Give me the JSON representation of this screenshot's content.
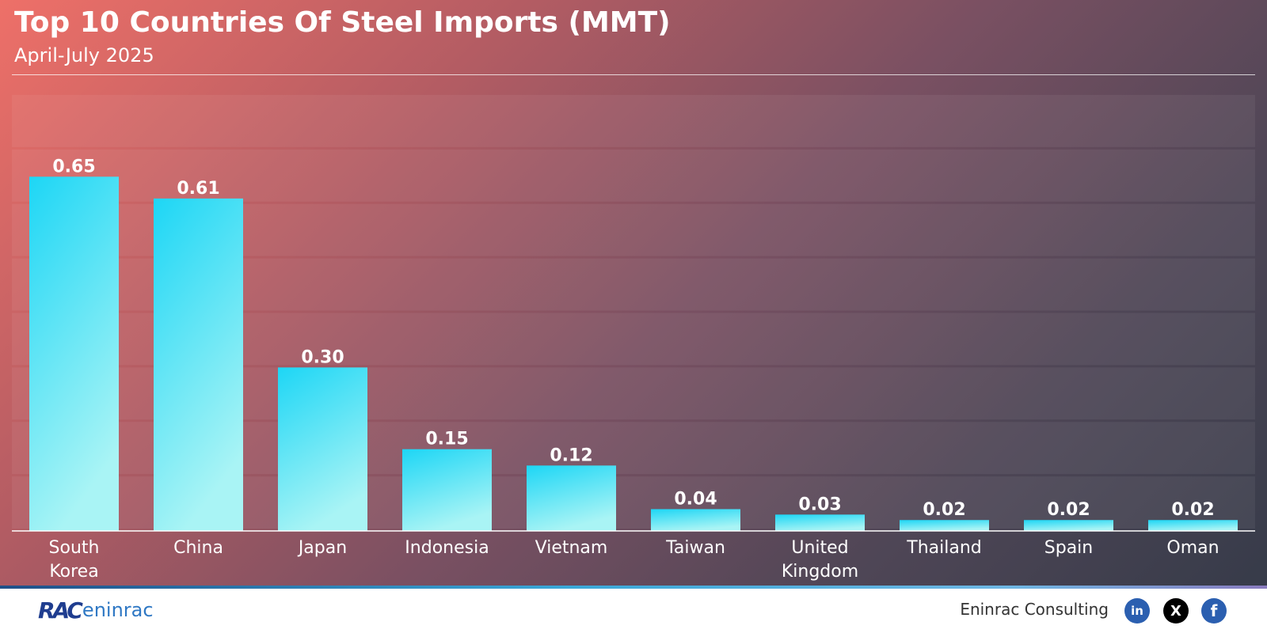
{
  "header": {
    "title": "Top 10 Countries Of Steel Imports (MMT)",
    "subtitle": "April-July 2025"
  },
  "chart_data": {
    "type": "bar",
    "title": "Top 10 Countries Of Steel Imports (MMT)",
    "subtitle": "April-July 2025",
    "categories": [
      [
        "South",
        "Korea"
      ],
      [
        "China"
      ],
      [
        "Japan"
      ],
      [
        "Indonesia"
      ],
      [
        "Vietnam"
      ],
      [
        "Taiwan"
      ],
      [
        "United",
        "Kingdom"
      ],
      [
        "Thailand"
      ],
      [
        "Spain"
      ],
      [
        "Oman"
      ]
    ],
    "values": [
      0.65,
      0.61,
      0.3,
      0.15,
      0.12,
      0.04,
      0.03,
      0.02,
      0.02,
      0.02
    ],
    "value_labels": [
      "0.65",
      "0.61",
      "0.30",
      "0.15",
      "0.12",
      "0.04",
      "0.03",
      "0.02",
      "0.02",
      "0.02"
    ],
    "xlabel": "",
    "ylabel": "",
    "ylim": [
      0,
      0.8
    ],
    "grid": true,
    "legend": "none",
    "colors": {
      "bar_top": "#1dd6f5",
      "bar_bottom": "#a9f4f5",
      "grid_band": "#ffffff",
      "text": "#ffffff"
    }
  },
  "footer": {
    "logo_mark": "RAC",
    "logo_word": "eninrac",
    "brand": "Eninrac Consulting",
    "social": [
      {
        "name": "linkedin-icon",
        "glyph": "in"
      },
      {
        "name": "x-icon",
        "glyph": "X"
      },
      {
        "name": "facebook-icon",
        "glyph": "f"
      }
    ]
  }
}
